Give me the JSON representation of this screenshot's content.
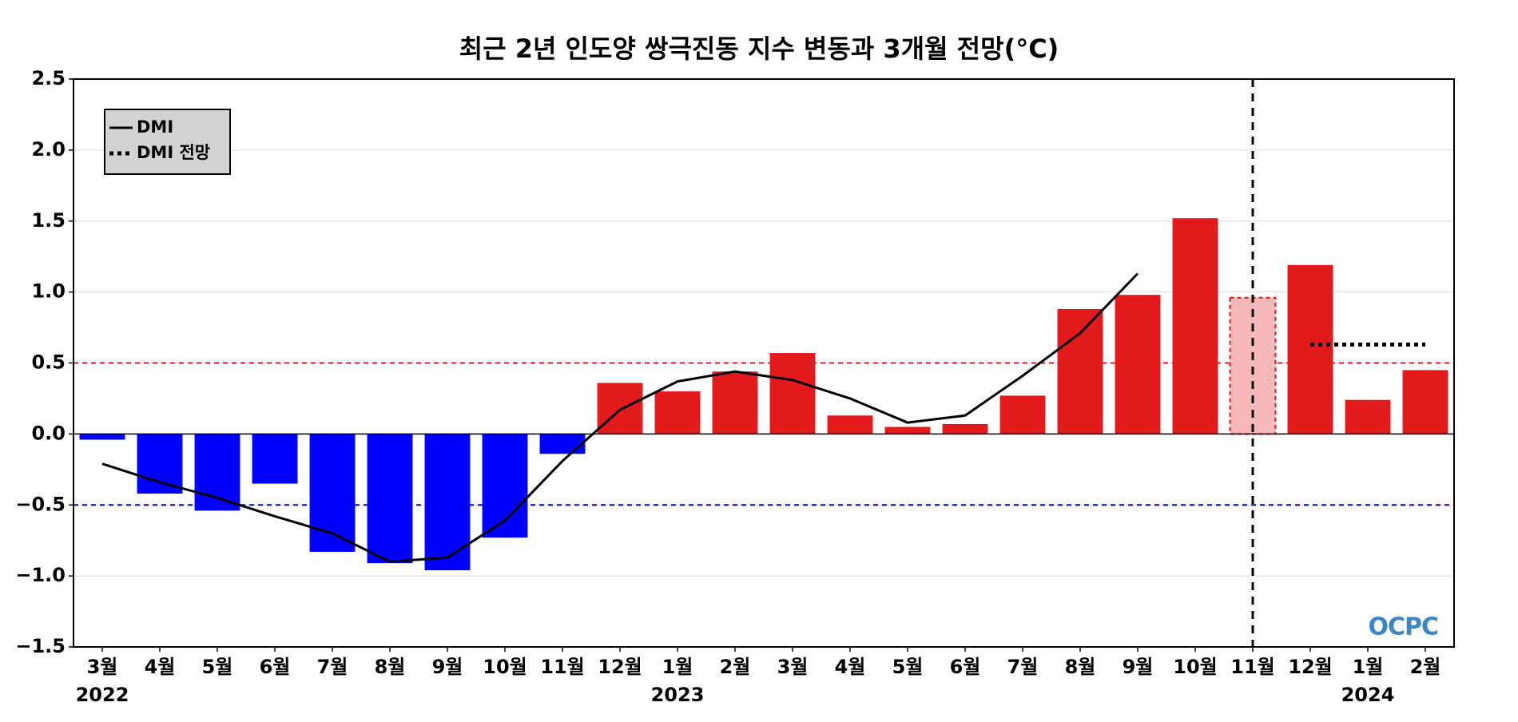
{
  "chart_data": {
    "type": "bar",
    "title": "최근 2년 인도양 쌍극진동 지수 변동과 3개월 전망(°C)",
    "categories": [
      "3월",
      "4월",
      "5월",
      "6월",
      "7월",
      "8월",
      "9월",
      "10월",
      "11월",
      "12월",
      "1월",
      "2월",
      "3월",
      "4월",
      "5월",
      "6월",
      "7월",
      "8월",
      "9월",
      "10월",
      "11월",
      "12월",
      "1월",
      "2월"
    ],
    "year_labels": [
      "2022",
      null,
      null,
      null,
      null,
      null,
      null,
      null,
      null,
      null,
      "2023",
      null,
      null,
      null,
      null,
      null,
      null,
      null,
      null,
      null,
      null,
      null,
      "2024",
      null
    ],
    "values": [
      -0.04,
      -0.42,
      -0.54,
      -0.35,
      -0.83,
      -0.91,
      -0.96,
      -0.73,
      -0.14,
      0.36,
      0.3,
      0.44,
      0.57,
      0.13,
      0.05,
      0.07,
      0.27,
      0.88,
      0.98,
      1.52,
      0.96,
      1.19,
      0.24,
      0.45
    ],
    "bar_colors": [
      "#0000ff",
      "#0000ff",
      "#0000ff",
      "#0000ff",
      "#0000ff",
      "#0000ff",
      "#0000ff",
      "#0000ff",
      "#0000ff",
      "#e31a1c",
      "#e31a1c",
      "#e31a1c",
      "#e31a1c",
      "#e31a1c",
      "#e31a1c",
      "#e31a1c",
      "#e31a1c",
      "#e31a1c",
      "#e31a1c",
      "#e31a1c",
      "#f6b8b8",
      "#e31a1c",
      "#e31a1c",
      "#e31a1c"
    ],
    "series": [
      {
        "name": "DMI",
        "color": "#000000",
        "dash": "solid",
        "values": [
          -0.21,
          -0.34,
          -0.45,
          -0.58,
          -0.7,
          -0.9,
          -0.87,
          -0.61,
          -0.19,
          0.17,
          0.37,
          0.44,
          0.38,
          0.25,
          0.08,
          0.13,
          0.41,
          0.71,
          1.13,
          null,
          null,
          null,
          null,
          null
        ]
      },
      {
        "name": "DMI 전망",
        "color": "#000000",
        "dash": "dotted",
        "values": [
          null,
          null,
          null,
          null,
          null,
          null,
          null,
          null,
          null,
          null,
          null,
          null,
          null,
          null,
          null,
          null,
          null,
          null,
          null,
          null,
          null,
          0.63,
          0.63,
          0.63
        ]
      }
    ],
    "reference_lines": [
      {
        "value": 0.5,
        "color": "#e31a1c"
      },
      {
        "value": -0.5,
        "color": "#0000cc"
      }
    ],
    "vline_index": 20,
    "ylim": [
      -1.5,
      2.5
    ],
    "yticks": [
      {
        "value": -1.5,
        "label": "−1.5"
      },
      {
        "value": -1.0,
        "label": "−1.0"
      },
      {
        "value": -0.5,
        "label": "−0.5"
      },
      {
        "value": 0,
        "label": "0.0"
      },
      {
        "value": 0.5,
        "label": "0.5"
      },
      {
        "value": 1.0,
        "label": "1.0"
      },
      {
        "value": 1.5,
        "label": "1.5"
      },
      {
        "value": 2.0,
        "label": "2.0"
      },
      {
        "value": 2.5,
        "label": "2.5"
      }
    ],
    "grid": true,
    "legend": "upper left",
    "logo": "OCPC"
  }
}
